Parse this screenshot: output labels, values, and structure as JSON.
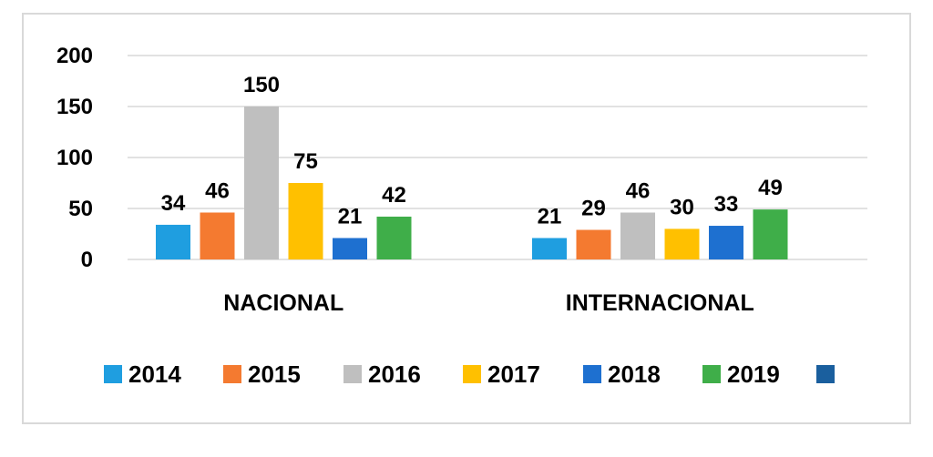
{
  "chart_data": {
    "type": "bar",
    "categories": [
      "NACIONAL",
      "INTERNACIONAL"
    ],
    "series": [
      {
        "name": "2014",
        "values": [
          34,
          21
        ],
        "color": "#1f9ee0"
      },
      {
        "name": "2015",
        "values": [
          46,
          29
        ],
        "color": "#f47a30"
      },
      {
        "name": "2016",
        "values": [
          150,
          46
        ],
        "color": "#bfbfbf"
      },
      {
        "name": "2017",
        "values": [
          75,
          30
        ],
        "color": "#ffc000"
      },
      {
        "name": "2018",
        "values": [
          21,
          33
        ],
        "color": "#1e70d0"
      },
      {
        "name": "2019",
        "values": [
          42,
          49
        ],
        "color": "#3fae49"
      },
      {
        "name": "",
        "values": [
          null,
          null
        ],
        "color": "#1a5f9e"
      }
    ],
    "yticks": [
      "0",
      "50",
      "100",
      "150",
      "200"
    ],
    "ylim": [
      0,
      200
    ],
    "grid": true,
    "legend": "bottom",
    "data_labels": true
  }
}
